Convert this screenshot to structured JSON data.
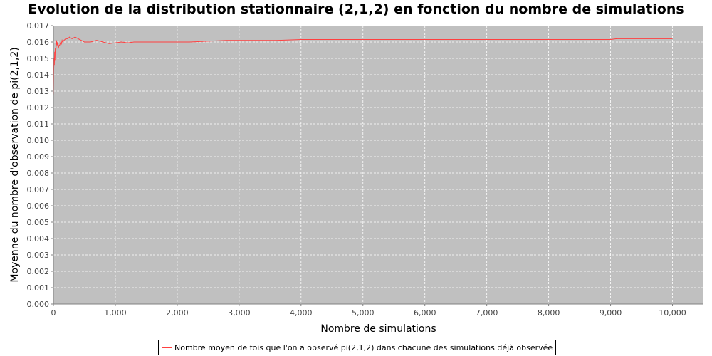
{
  "colors": {
    "plot_bg": "#c0c0c0",
    "grid": "#ffffff",
    "series": "#ff4040",
    "axis": "#808080",
    "tick_text": "#444444"
  },
  "chart_data": {
    "type": "line",
    "title": "Evolution de la distribution stationnaire (2,1,2) en fonction du nombre de simulations",
    "xlabel": "Nombre de simulations",
    "ylabel": "Moyenne du nombre d'observation de pi(2,1,2)",
    "xlim": [
      0,
      10500
    ],
    "ylim": [
      0.0,
      0.017
    ],
    "grid": true,
    "legend_position": "bottom-center",
    "x_ticks": [
      "0",
      "1,000",
      "2,000",
      "3,000",
      "4,000",
      "5,000",
      "6,000",
      "7,000",
      "8,000",
      "9,000",
      "10,000"
    ],
    "y_ticks": [
      "0.000",
      "0.001",
      "0.002",
      "0.003",
      "0.004",
      "0.005",
      "0.006",
      "0.007",
      "0.008",
      "0.009",
      "0.010",
      "0.011",
      "0.012",
      "0.013",
      "0.014",
      "0.015",
      "0.016",
      "0.017"
    ],
    "series": [
      {
        "name": "Nombre moyen de fois que l'on a observé pi(2,1,2) dans chacune des simulations déjà observée",
        "x": [
          1,
          5,
          10,
          15,
          20,
          25,
          30,
          40,
          50,
          60,
          70,
          80,
          90,
          100,
          110,
          120,
          130,
          140,
          150,
          170,
          200,
          230,
          260,
          300,
          350,
          400,
          450,
          500,
          550,
          600,
          700,
          800,
          900,
          1000,
          1100,
          1200,
          1300,
          1500,
          1800,
          2000,
          2200,
          2500,
          2800,
          3000,
          3300,
          3600,
          4000,
          4500,
          5000,
          5500,
          6000,
          6500,
          7000,
          7500,
          8000,
          8500,
          9000,
          9100,
          9500,
          10000
        ],
        "y": [
          0.0128,
          0.0142,
          0.015,
          0.0146,
          0.0154,
          0.0149,
          0.0156,
          0.0155,
          0.0161,
          0.0158,
          0.016,
          0.0156,
          0.0158,
          0.0158,
          0.0159,
          0.016,
          0.0159,
          0.0161,
          0.016,
          0.0161,
          0.0162,
          0.0162,
          0.0163,
          0.0162,
          0.0163,
          0.0162,
          0.0161,
          0.016,
          0.016,
          0.016,
          0.0161,
          0.016,
          0.0159,
          0.01595,
          0.016,
          0.01595,
          0.016,
          0.016,
          0.016,
          0.016,
          0.016,
          0.01605,
          0.0161,
          0.0161,
          0.0161,
          0.0161,
          0.01615,
          0.01615,
          0.01615,
          0.01615,
          0.01615,
          0.01615,
          0.01615,
          0.01615,
          0.01615,
          0.01615,
          0.01615,
          0.0162,
          0.0162,
          0.0162
        ]
      }
    ]
  }
}
